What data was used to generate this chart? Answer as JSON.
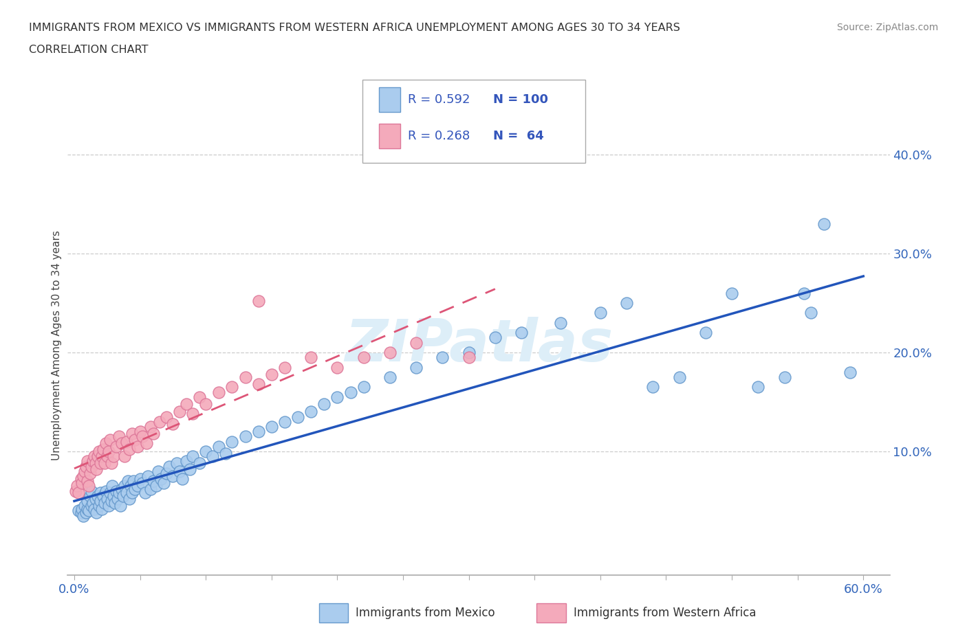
{
  "title_line1": "IMMIGRANTS FROM MEXICO VS IMMIGRANTS FROM WESTERN AFRICA UNEMPLOYMENT AMONG AGES 30 TO 34 YEARS",
  "title_line2": "CORRELATION CHART",
  "source": "Source: ZipAtlas.com",
  "ylabel": "Unemployment Among Ages 30 to 34 years",
  "ytick_labels": [
    "10.0%",
    "20.0%",
    "30.0%",
    "40.0%"
  ],
  "ytick_values": [
    0.1,
    0.2,
    0.3,
    0.4
  ],
  "xlim": [
    -0.005,
    0.62
  ],
  "ylim": [
    -0.025,
    0.44
  ],
  "mexico_color": "#aaccee",
  "mexico_edge_color": "#6699cc",
  "africa_color": "#f4aabb",
  "africa_edge_color": "#dd7799",
  "mexico_line_color": "#2255bb",
  "africa_line_color": "#dd5577",
  "legend_R_color": "#3355bb",
  "legend_N_color": "#3355bb",
  "watermark_color": "#d8e8f0",
  "watermark": "ZIPatlas",
  "legend_R_mexico": "R = 0.592",
  "legend_N_mexico": "N = 100",
  "legend_R_africa": "R = 0.268",
  "legend_N_africa": "N =  64",
  "mexico_x": [
    0.003,
    0.005,
    0.006,
    0.007,
    0.008,
    0.009,
    0.01,
    0.01,
    0.011,
    0.012,
    0.013,
    0.013,
    0.014,
    0.015,
    0.016,
    0.017,
    0.018,
    0.019,
    0.02,
    0.02,
    0.021,
    0.022,
    0.023,
    0.024,
    0.025,
    0.026,
    0.027,
    0.028,
    0.029,
    0.03,
    0.031,
    0.032,
    0.033,
    0.034,
    0.035,
    0.036,
    0.037,
    0.038,
    0.04,
    0.041,
    0.042,
    0.043,
    0.044,
    0.045,
    0.046,
    0.048,
    0.05,
    0.052,
    0.054,
    0.056,
    0.058,
    0.06,
    0.062,
    0.064,
    0.066,
    0.068,
    0.07,
    0.072,
    0.075,
    0.078,
    0.08,
    0.082,
    0.085,
    0.088,
    0.09,
    0.095,
    0.1,
    0.105,
    0.11,
    0.115,
    0.12,
    0.13,
    0.14,
    0.15,
    0.16,
    0.17,
    0.18,
    0.19,
    0.2,
    0.21,
    0.22,
    0.24,
    0.26,
    0.28,
    0.3,
    0.32,
    0.34,
    0.37,
    0.4,
    0.42,
    0.44,
    0.46,
    0.48,
    0.5,
    0.52,
    0.54,
    0.555,
    0.56,
    0.57,
    0.59
  ],
  "mexico_y": [
    0.04,
    0.038,
    0.042,
    0.035,
    0.045,
    0.038,
    0.042,
    0.05,
    0.04,
    0.055,
    0.045,
    0.06,
    0.048,
    0.042,
    0.052,
    0.038,
    0.055,
    0.045,
    0.058,
    0.05,
    0.042,
    0.055,
    0.048,
    0.06,
    0.052,
    0.045,
    0.058,
    0.05,
    0.065,
    0.055,
    0.048,
    0.06,
    0.052,
    0.058,
    0.045,
    0.062,
    0.055,
    0.065,
    0.058,
    0.07,
    0.052,
    0.065,
    0.058,
    0.07,
    0.062,
    0.065,
    0.072,
    0.068,
    0.058,
    0.075,
    0.062,
    0.07,
    0.065,
    0.08,
    0.072,
    0.068,
    0.078,
    0.085,
    0.075,
    0.088,
    0.08,
    0.072,
    0.09,
    0.082,
    0.095,
    0.088,
    0.1,
    0.095,
    0.105,
    0.098,
    0.11,
    0.115,
    0.12,
    0.125,
    0.13,
    0.135,
    0.14,
    0.148,
    0.155,
    0.16,
    0.165,
    0.175,
    0.185,
    0.195,
    0.2,
    0.215,
    0.22,
    0.23,
    0.24,
    0.25,
    0.165,
    0.175,
    0.22,
    0.26,
    0.165,
    0.175,
    0.26,
    0.24,
    0.33,
    0.18
  ],
  "africa_x": [
    0.001,
    0.002,
    0.003,
    0.005,
    0.006,
    0.007,
    0.008,
    0.009,
    0.01,
    0.01,
    0.011,
    0.012,
    0.013,
    0.014,
    0.015,
    0.016,
    0.017,
    0.018,
    0.019,
    0.02,
    0.021,
    0.022,
    0.023,
    0.024,
    0.025,
    0.026,
    0.027,
    0.028,
    0.03,
    0.032,
    0.034,
    0.036,
    0.038,
    0.04,
    0.042,
    0.044,
    0.046,
    0.048,
    0.05,
    0.052,
    0.055,
    0.058,
    0.06,
    0.065,
    0.07,
    0.075,
    0.08,
    0.085,
    0.09,
    0.095,
    0.1,
    0.11,
    0.12,
    0.13,
    0.14,
    0.15,
    0.16,
    0.18,
    0.2,
    0.22,
    0.24,
    0.26,
    0.3,
    0.14
  ],
  "africa_y": [
    0.06,
    0.065,
    0.058,
    0.072,
    0.068,
    0.075,
    0.08,
    0.085,
    0.07,
    0.09,
    0.065,
    0.078,
    0.085,
    0.09,
    0.095,
    0.088,
    0.082,
    0.095,
    0.1,
    0.088,
    0.095,
    0.102,
    0.088,
    0.108,
    0.095,
    0.1,
    0.112,
    0.088,
    0.095,
    0.105,
    0.115,
    0.108,
    0.095,
    0.11,
    0.102,
    0.118,
    0.112,
    0.105,
    0.12,
    0.115,
    0.108,
    0.125,
    0.118,
    0.13,
    0.135,
    0.128,
    0.14,
    0.148,
    0.138,
    0.155,
    0.148,
    0.16,
    0.165,
    0.175,
    0.168,
    0.178,
    0.185,
    0.195,
    0.185,
    0.195,
    0.2,
    0.21,
    0.195,
    0.252
  ]
}
